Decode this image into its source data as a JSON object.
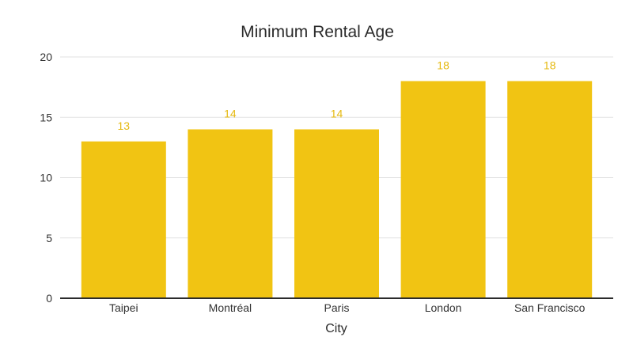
{
  "chart_data": {
    "type": "bar",
    "title": "Minimum Rental Age",
    "xlabel": "City",
    "ylabel": "",
    "categories": [
      "Taipei",
      "Montréal",
      "Paris",
      "London",
      "San Francisco"
    ],
    "values": [
      13,
      14,
      14,
      18,
      18
    ],
    "ylim": [
      0,
      20
    ],
    "yticks": [
      0,
      5,
      10,
      15,
      20
    ],
    "grid": true,
    "legend": "none",
    "data_labels": true,
    "colors": {
      "bar": "#f1c413",
      "label": "#e5b910"
    }
  }
}
